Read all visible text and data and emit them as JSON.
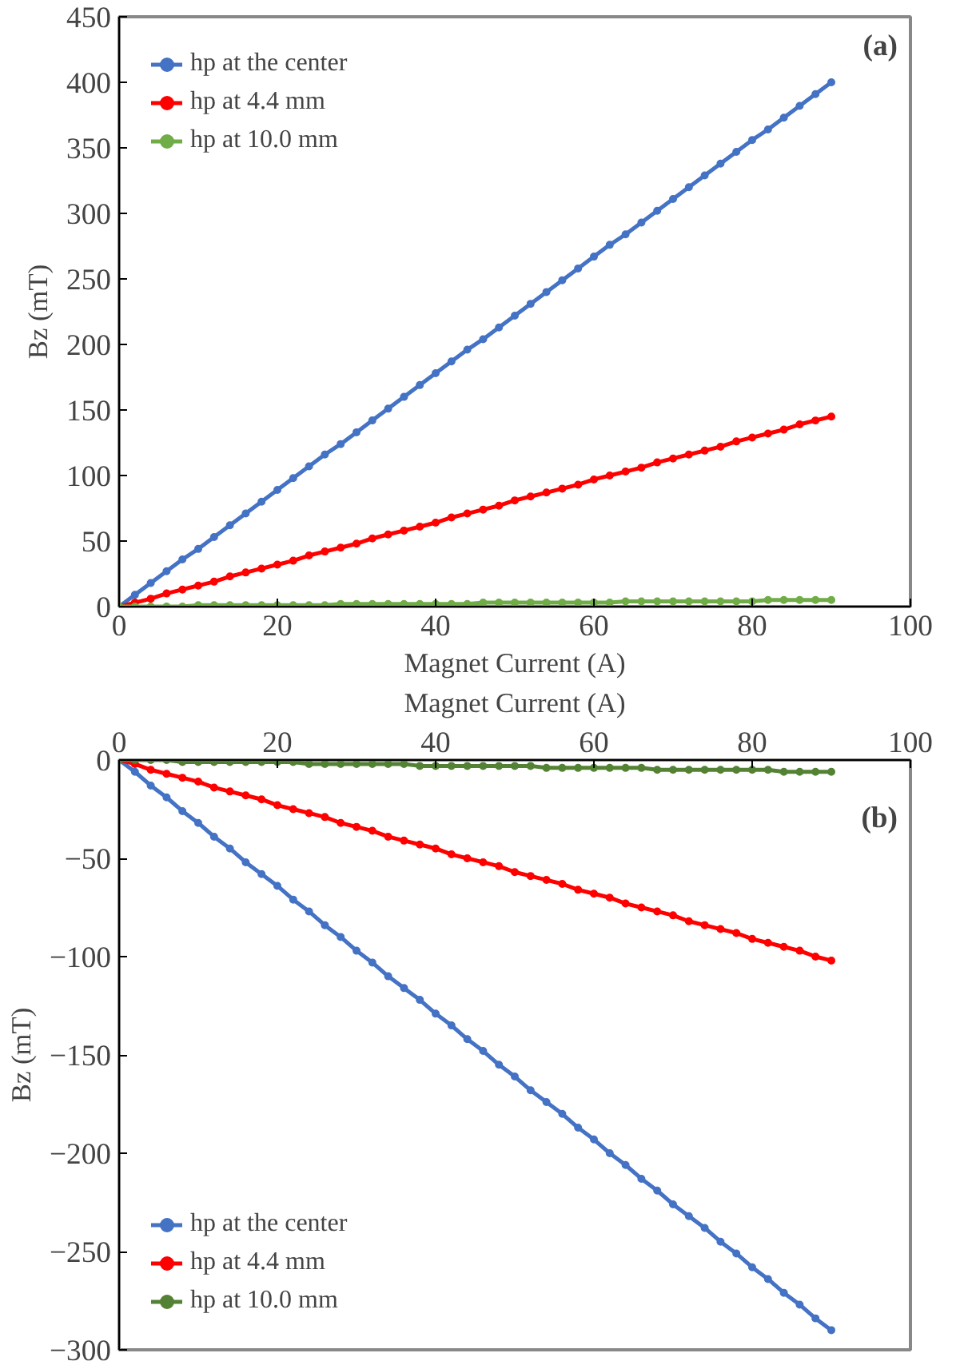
{
  "chart_data": [
    {
      "type": "line",
      "annotations": [
        "(a)"
      ],
      "xlabel": "Magnet Current (A)",
      "ylabel": "Bz (mT)",
      "xlim": [
        0,
        100
      ],
      "xticks": [
        0,
        20,
        40,
        60,
        80,
        100
      ],
      "ylim": [
        0,
        450
      ],
      "yticks": [
        0,
        50,
        100,
        150,
        200,
        250,
        300,
        350,
        400,
        450
      ],
      "legend": "top left",
      "marker": "circle",
      "grid": false,
      "x": [
        0,
        2,
        4,
        6,
        8,
        10,
        12,
        14,
        16,
        18,
        20,
        22,
        24,
        26,
        28,
        30,
        32,
        34,
        36,
        38,
        40,
        42,
        44,
        46,
        48,
        50,
        52,
        54,
        56,
        58,
        60,
        62,
        64,
        66,
        68,
        70,
        72,
        74,
        76,
        78,
        80,
        82,
        84,
        86,
        88,
        90
      ],
      "series": [
        {
          "name": "hp at the center",
          "color": "#4472c4",
          "values": [
            0,
            9,
            18,
            27,
            36,
            44,
            53,
            62,
            71,
            80,
            89,
            98,
            107,
            116,
            124,
            133,
            142,
            151,
            160,
            169,
            178,
            187,
            196,
            204,
            213,
            222,
            231,
            240,
            249,
            258,
            267,
            276,
            284,
            293,
            302,
            311,
            320,
            329,
            338,
            347,
            356,
            364,
            373,
            382,
            391,
            400
          ]
        },
        {
          "name": "hp at 4.4 mm",
          "color": "#ff0000",
          "values": [
            0,
            3,
            6,
            10,
            13,
            16,
            19,
            23,
            26,
            29,
            32,
            35,
            39,
            42,
            45,
            48,
            52,
            55,
            58,
            61,
            64,
            68,
            71,
            74,
            77,
            81,
            84,
            87,
            90,
            93,
            97,
            100,
            103,
            106,
            110,
            113,
            116,
            119,
            122,
            126,
            129,
            132,
            135,
            139,
            142,
            145
          ]
        },
        {
          "name": "hp at 10.0 mm",
          "color": "#70ad47",
          "values": [
            0,
            0,
            0,
            0,
            0,
            1,
            1,
            1,
            1,
            1,
            1,
            1,
            1,
            1,
            2,
            2,
            2,
            2,
            2,
            2,
            2,
            2,
            2,
            3,
            3,
            3,
            3,
            3,
            3,
            3,
            3,
            3,
            4,
            4,
            4,
            4,
            4,
            4,
            4,
            4,
            4,
            5,
            5,
            5,
            5,
            5
          ]
        }
      ]
    },
    {
      "type": "line",
      "annotations": [
        "(b)"
      ],
      "xlabel": "Magnet Current (A)",
      "ylabel": "Bz (mT)",
      "xlim": [
        0,
        100
      ],
      "xticks": [
        0,
        20,
        40,
        60,
        80,
        100
      ],
      "ylim": [
        -300,
        0
      ],
      "yticks": [
        -300,
        -250,
        -200,
        -150,
        -100,
        -50,
        0
      ],
      "legend": "bottom left",
      "marker": "circle",
      "grid": false,
      "x": [
        0,
        2,
        4,
        6,
        8,
        10,
        12,
        14,
        16,
        18,
        20,
        22,
        24,
        26,
        28,
        30,
        32,
        34,
        36,
        38,
        40,
        42,
        44,
        46,
        48,
        50,
        52,
        54,
        56,
        58,
        60,
        62,
        64,
        66,
        68,
        70,
        72,
        74,
        76,
        78,
        80,
        82,
        84,
        86,
        88,
        90
      ],
      "series": [
        {
          "name": "hp at the center",
          "color": "#4472c4",
          "values": [
            0,
            -6,
            -13,
            -19,
            -26,
            -32,
            -39,
            -45,
            -52,
            -58,
            -64,
            -71,
            -77,
            -84,
            -90,
            -97,
            -103,
            -110,
            -116,
            -122,
            -129,
            -135,
            -142,
            -148,
            -155,
            -161,
            -168,
            -174,
            -180,
            -187,
            -193,
            -200,
            -206,
            -213,
            -219,
            -226,
            -232,
            -238,
            -245,
            -251,
            -258,
            -264,
            -271,
            -277,
            -284,
            -290
          ]
        },
        {
          "name": "hp at 4.4 mm",
          "color": "#ff0000",
          "values": [
            0,
            -2,
            -5,
            -7,
            -9,
            -11,
            -14,
            -16,
            -18,
            -20,
            -23,
            -25,
            -27,
            -29,
            -32,
            -34,
            -36,
            -39,
            -41,
            -43,
            -45,
            -48,
            -50,
            -52,
            -54,
            -57,
            -59,
            -61,
            -63,
            -66,
            -68,
            -70,
            -73,
            -75,
            -77,
            -79,
            -82,
            -84,
            -86,
            -88,
            -91,
            -93,
            -95,
            -97,
            -100,
            -102
          ]
        },
        {
          "name": "hp at 10.0 mm",
          "color": "#548235",
          "values": [
            0,
            0,
            0,
            0,
            -1,
            -1,
            -1,
            -1,
            -1,
            -1,
            -1,
            -1,
            -2,
            -2,
            -2,
            -2,
            -2,
            -2,
            -2,
            -3,
            -3,
            -3,
            -3,
            -3,
            -3,
            -3,
            -3,
            -4,
            -4,
            -4,
            -4,
            -4,
            -4,
            -4,
            -5,
            -5,
            -5,
            -5,
            -5,
            -5,
            -5,
            -5,
            -6,
            -6,
            -6,
            -6
          ]
        }
      ]
    }
  ]
}
